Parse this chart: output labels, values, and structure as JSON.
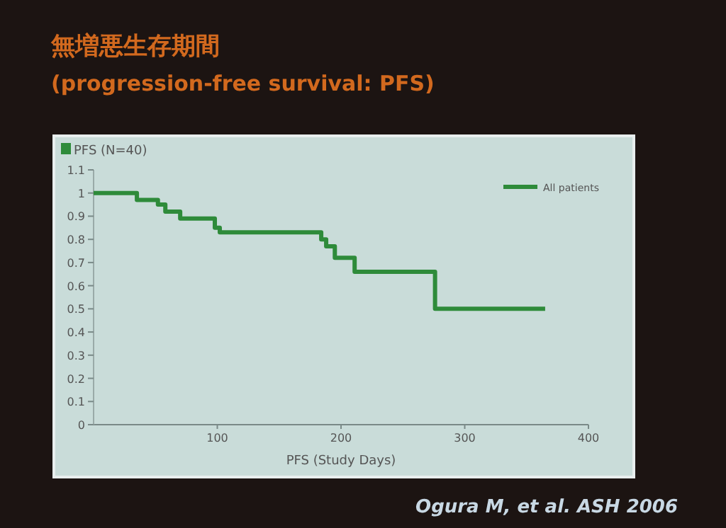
{
  "chart_data": {
    "type": "step",
    "title": "無増悪生存期間",
    "subtitle": "(progression-free survival: PFS)",
    "xlabel": "PFS (Study Days)",
    "annotations": [
      "PFS (N=40)",
      "Ogura M, et al. ASH 2006"
    ],
    "x": [
      0,
      35,
      52,
      58,
      70,
      98,
      102,
      184,
      188,
      195,
      211,
      276,
      365
    ],
    "series": [
      {
        "name": "All patients",
        "color": "#2e8b3a",
        "values": [
          1.0,
          0.97,
          0.95,
          0.92,
          0.89,
          0.85,
          0.83,
          0.8,
          0.77,
          0.72,
          0.66,
          0.5,
          0.5
        ]
      }
    ],
    "xlim": [
      0,
      400
    ],
    "xticks": [
      100,
      200,
      300,
      400
    ],
    "ylim": [
      0,
      1.1
    ],
    "yticks": [
      0,
      0.1,
      0.2,
      0.3,
      0.4,
      0.5,
      0.6,
      0.7,
      0.8,
      0.9,
      1,
      1.1
    ],
    "legend": "top right",
    "grid": false
  }
}
